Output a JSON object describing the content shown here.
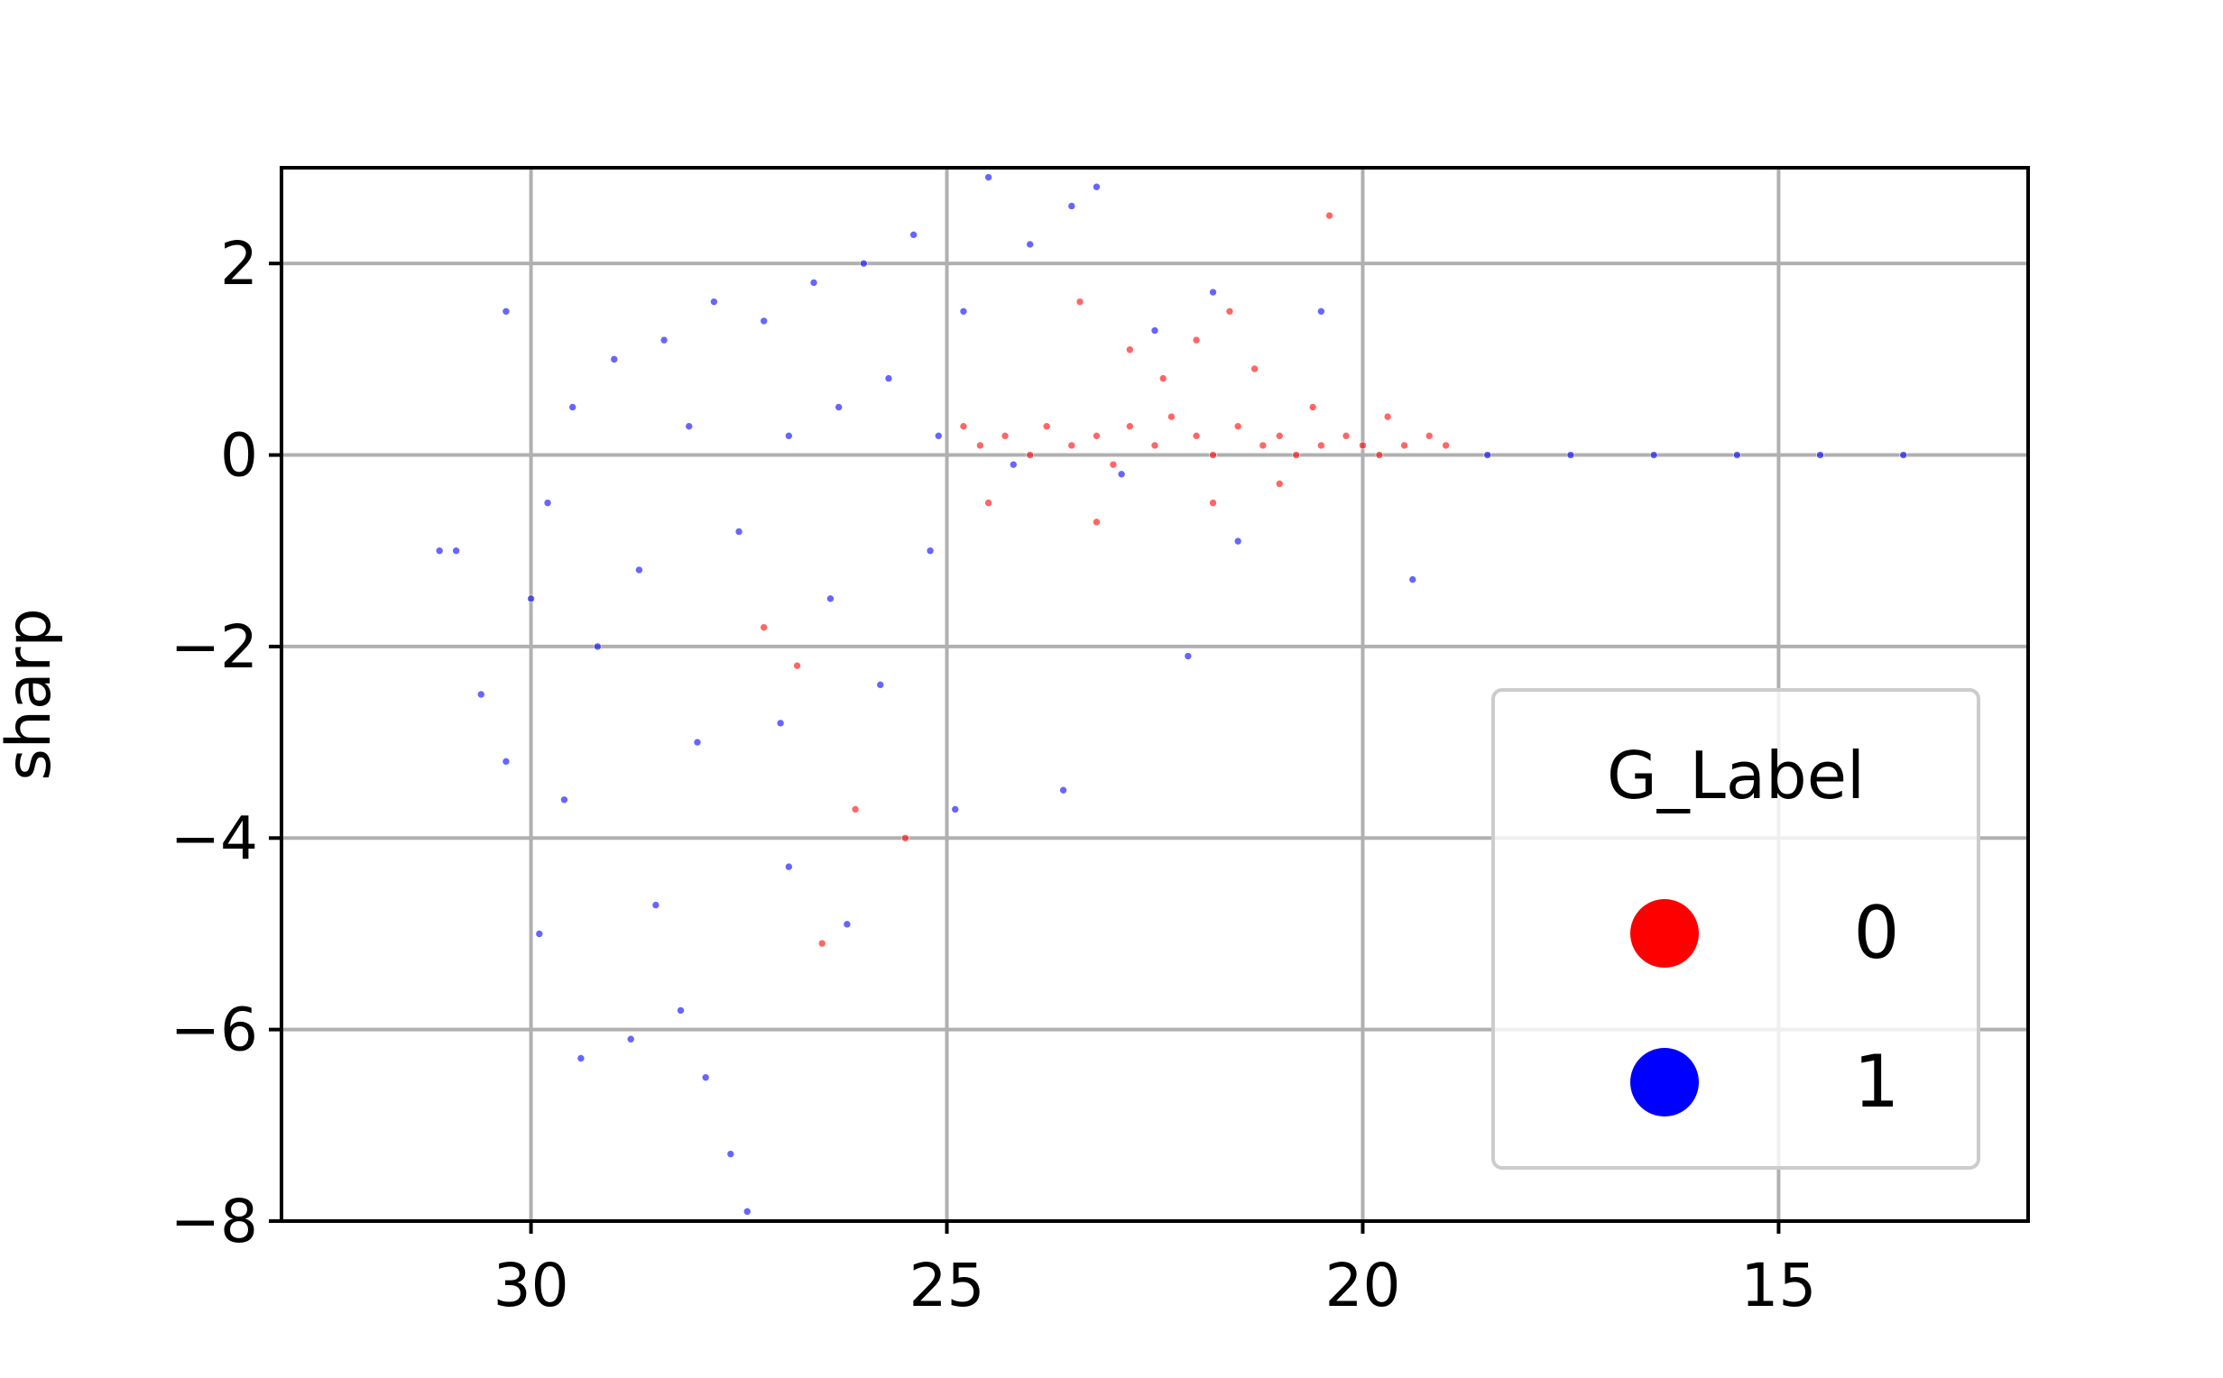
{
  "chart_data": {
    "type": "scatter",
    "title": "",
    "xlabel": "",
    "ylabel": "sharp",
    "xlim": [
      33,
      12
    ],
    "ylim": [
      -8,
      3
    ],
    "x_inverted": true,
    "xticks": [
      "30",
      "25",
      "20",
      "15"
    ],
    "yticks": [
      "2",
      "0",
      "−2",
      "−4",
      "−6",
      "−8"
    ],
    "grid": true,
    "legend": {
      "title": "G_Label",
      "placement": "lower right",
      "entries": [
        "0",
        "1"
      ]
    },
    "colors": {
      "0": "#ff0000",
      "1": "#0000ff"
    },
    "series": [
      {
        "name": "0",
        "points": [
          [
            24.6,
            0.1
          ],
          [
            24.3,
            0.2
          ],
          [
            24.0,
            0.0
          ],
          [
            23.8,
            0.3
          ],
          [
            23.5,
            0.1
          ],
          [
            23.2,
            0.2
          ],
          [
            23.0,
            -0.1
          ],
          [
            22.8,
            0.3
          ],
          [
            22.5,
            0.1
          ],
          [
            22.3,
            0.4
          ],
          [
            22.0,
            0.2
          ],
          [
            21.8,
            0.0
          ],
          [
            21.5,
            0.3
          ],
          [
            21.2,
            0.1
          ],
          [
            21.0,
            0.2
          ],
          [
            20.8,
            0.0
          ],
          [
            20.5,
            0.1
          ],
          [
            20.2,
            0.2
          ],
          [
            20.0,
            0.1
          ],
          [
            19.8,
            0.0
          ],
          [
            19.5,
            0.1
          ],
          [
            19.2,
            0.2
          ],
          [
            19.0,
            0.1
          ],
          [
            22.0,
            1.2
          ],
          [
            21.6,
            1.5
          ],
          [
            21.3,
            0.9
          ],
          [
            22.4,
            0.8
          ],
          [
            20.6,
            0.5
          ],
          [
            23.4,
            1.6
          ],
          [
            22.8,
            1.1
          ],
          [
            20.4,
            2.5
          ],
          [
            23.2,
            -0.7
          ],
          [
            21.8,
            -0.5
          ],
          [
            26.5,
            -5.1
          ],
          [
            26.1,
            -3.7
          ],
          [
            25.5,
            -4.0
          ],
          [
            27.2,
            -1.8
          ],
          [
            26.8,
            -2.2
          ],
          [
            24.5,
            -0.5
          ],
          [
            21.0,
            -0.3
          ],
          [
            19.7,
            0.4
          ],
          [
            24.8,
            0.3
          ]
        ]
      },
      {
        "name": "1",
        "points": [
          [
            30.9,
            -1.0
          ],
          [
            30.6,
            -2.5
          ],
          [
            30.3,
            -3.2
          ],
          [
            30.0,
            -1.5
          ],
          [
            29.8,
            -0.5
          ],
          [
            29.5,
            0.5
          ],
          [
            29.2,
            -2.0
          ],
          [
            29.0,
            1.0
          ],
          [
            28.7,
            -1.2
          ],
          [
            28.4,
            1.2
          ],
          [
            28.1,
            0.3
          ],
          [
            27.8,
            1.6
          ],
          [
            27.5,
            -0.8
          ],
          [
            27.2,
            1.4
          ],
          [
            26.9,
            0.2
          ],
          [
            26.6,
            1.8
          ],
          [
            26.3,
            0.5
          ],
          [
            26.0,
            2.0
          ],
          [
            25.7,
            0.8
          ],
          [
            25.4,
            2.3
          ],
          [
            25.1,
            0.2
          ],
          [
            24.8,
            1.5
          ],
          [
            24.5,
            2.9
          ],
          [
            24.0,
            2.2
          ],
          [
            23.5,
            2.6
          ],
          [
            23.2,
            2.8
          ],
          [
            22.5,
            1.3
          ],
          [
            21.8,
            1.7
          ],
          [
            20.5,
            1.5
          ],
          [
            19.4,
            -1.3
          ],
          [
            22.1,
            -2.1
          ],
          [
            28.5,
            -4.7
          ],
          [
            28.2,
            -5.8
          ],
          [
            27.9,
            -6.5
          ],
          [
            27.6,
            -7.3
          ],
          [
            27.4,
            -7.9
          ],
          [
            29.9,
            -5.0
          ],
          [
            29.4,
            -6.3
          ],
          [
            28.8,
            -6.1
          ],
          [
            26.9,
            -4.3
          ],
          [
            26.2,
            -4.9
          ],
          [
            25.8,
            -2.4
          ],
          [
            24.9,
            -3.7
          ],
          [
            30.3,
            1.5
          ],
          [
            23.6,
            -3.5
          ],
          [
            21.5,
            -0.9
          ],
          [
            22.9,
            -0.2
          ],
          [
            24.2,
            -0.1
          ],
          [
            31.1,
            -1.0
          ],
          [
            29.6,
            -3.6
          ],
          [
            28.0,
            -3.0
          ],
          [
            27.0,
            -2.8
          ],
          [
            26.4,
            -1.5
          ],
          [
            25.2,
            -1.0
          ]
        ]
      },
      {
        "name": "1",
        "points": [
          [
            18.5,
            0.0
          ],
          [
            17.5,
            0.0
          ],
          [
            16.5,
            0.0
          ],
          [
            15.5,
            0.0
          ],
          [
            14.5,
            0.0
          ],
          [
            13.5,
            0.0
          ]
        ]
      }
    ]
  }
}
